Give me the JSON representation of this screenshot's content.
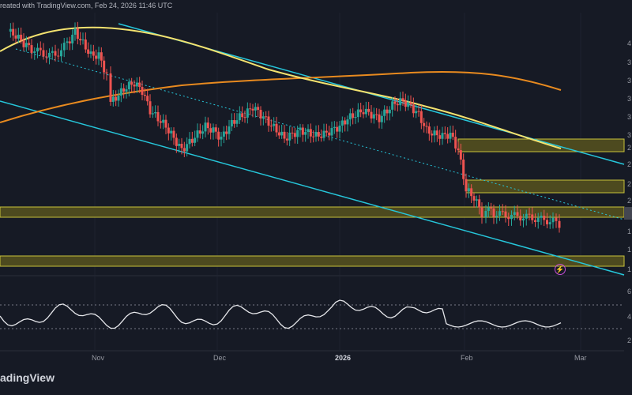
{
  "header": {
    "text": "reated with TradingView.com, Feb 24, 2026 11:46 UTC"
  },
  "watermark": "adingView",
  "x_axis": {
    "labels": [
      "Nov",
      "Dec",
      "2026",
      "Feb",
      "Mar"
    ]
  },
  "rsi_axis": {
    "labels": [
      "6",
      "4",
      "2"
    ]
  },
  "colors": {
    "background": "#161a25",
    "up": "#26a69a",
    "down": "#ef5350",
    "sma_yellow": "#f3e26f",
    "sma_orange": "#e88a1f",
    "channel": "#26c6da",
    "zone_border": "#c8c13a",
    "zone_fill": "#4d4a1f",
    "rsi_line": "#e6e7eb",
    "grid": "#20242f",
    "alert": "#c74fd7"
  },
  "icons": {
    "alert": "lightning-alert-icon"
  },
  "chart_data": {
    "type": "candlestick",
    "price_axis_labels": [
      "4",
      "3",
      "3",
      "3",
      "3",
      "3",
      "2",
      "2",
      "2",
      "2",
      "1",
      "1",
      "1"
    ],
    "overlays": [
      "yellow moving average",
      "orange moving average",
      "cyan descending channel",
      "dotted trendline",
      "four yellow supply/demand zones"
    ],
    "rsi_panel": true
  }
}
